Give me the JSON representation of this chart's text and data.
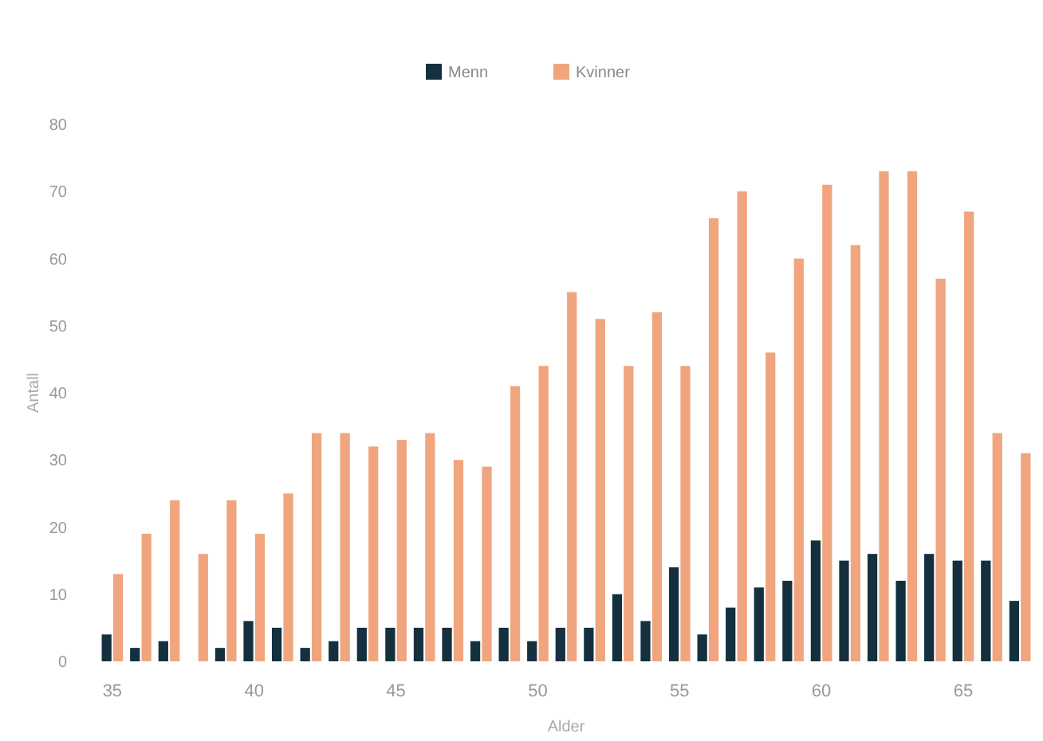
{
  "chart_data": {
    "type": "bar",
    "xlabel": "Alder",
    "ylabel": "Antall",
    "categories": [
      "35",
      null,
      null,
      null,
      null,
      "40",
      null,
      null,
      null,
      null,
      "45",
      null,
      null,
      null,
      null,
      "50",
      null,
      null,
      null,
      null,
      "55",
      null,
      null,
      null,
      null,
      "60",
      null,
      null,
      null,
      null,
      "65",
      null,
      null
    ],
    "series": [
      {
        "name": "Menn",
        "color": "#14303f",
        "values": [
          4,
          2,
          3,
          0,
          2,
          6,
          5,
          2,
          3,
          5,
          5,
          5,
          5,
          3,
          5,
          3,
          5,
          5,
          10,
          6,
          14,
          4,
          8,
          11,
          12,
          18,
          15,
          16,
          12,
          16,
          15,
          15,
          9
        ]
      },
      {
        "name": "Kvinner",
        "color": "#f0a57e",
        "values": [
          13,
          19,
          24,
          16,
          24,
          19,
          25,
          34,
          34,
          32,
          33,
          34,
          30,
          29,
          41,
          44,
          55,
          51,
          44,
          52,
          44,
          66,
          70,
          46,
          60,
          71,
          62,
          73,
          73,
          57,
          67,
          34,
          31
        ]
      }
    ],
    "ylim": [
      0,
      80
    ],
    "yticks": [
      0,
      10,
      20,
      30,
      40,
      50,
      60,
      70,
      80
    ],
    "grid": false,
    "legend": "top"
  }
}
